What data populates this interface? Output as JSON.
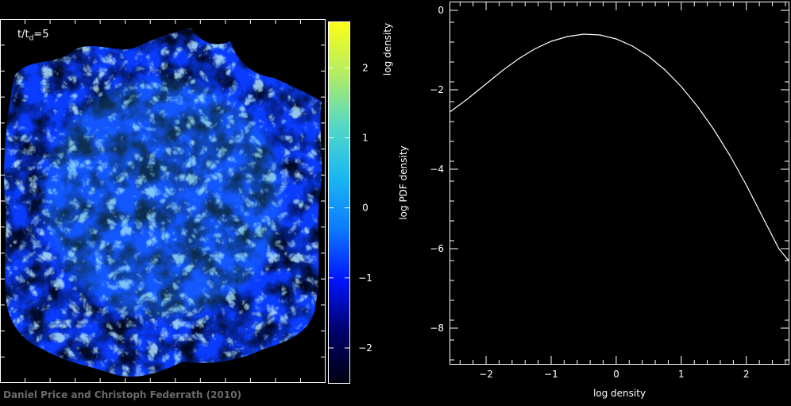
{
  "credit": "Daniel Price and Christoph Federrath (2010)",
  "time_label": {
    "prefix": "t/t",
    "sub": "d",
    "suffix": "=5"
  },
  "colors": {
    "background": "#000000",
    "frame": "#ffffff",
    "pdf_line": "#ffffff",
    "colormap": [
      "#000010",
      "#00006a",
      "#0015ff",
      "#0d7bff",
      "#1ab8f2",
      "#55d9c4",
      "#b3ec63",
      "#fcff17"
    ],
    "credit_text": "#6b6b6b"
  },
  "chart_data": [
    {
      "type": "heatmap",
      "title": "",
      "quantity": "log density",
      "colorbar": {
        "label": "log density",
        "ticks": [
          -2,
          -1,
          0,
          1,
          2
        ],
        "tick_labels": [
          "−2",
          "−1",
          "0",
          "1",
          "2"
        ],
        "range": [
          -2.5,
          2.65
        ]
      }
    },
    {
      "type": "line",
      "title": "",
      "xlabel": "log density",
      "ylabel": "log PDF density",
      "xlim": [
        -2.55,
        2.65
      ],
      "ylim": [
        -8.9,
        0.2
      ],
      "xticks": [
        -2,
        -1,
        0,
        1,
        2
      ],
      "xtick_labels": [
        "−2",
        "−1",
        "0",
        "1",
        "2"
      ],
      "yticks": [
        0,
        -2,
        -4,
        -6,
        -8
      ],
      "ytick_labels": [
        "0",
        "−2",
        "−4",
        "−6",
        "−8"
      ],
      "grid": false,
      "series": [
        {
          "x": [
            -2.55,
            -2.3,
            -2.0,
            -1.75,
            -1.5,
            -1.25,
            -1.0,
            -0.75,
            -0.5,
            -0.25,
            0.0,
            0.25,
            0.5,
            0.75,
            1.0,
            1.25,
            1.5,
            1.75,
            2.0,
            2.25,
            2.5,
            2.65
          ],
          "y": [
            -2.55,
            -2.25,
            -1.85,
            -1.52,
            -1.22,
            -0.97,
            -0.78,
            -0.66,
            -0.6,
            -0.62,
            -0.72,
            -0.9,
            -1.16,
            -1.5,
            -1.92,
            -2.42,
            -3.0,
            -3.66,
            -4.4,
            -5.2,
            -6.0,
            -6.3
          ]
        }
      ]
    }
  ]
}
